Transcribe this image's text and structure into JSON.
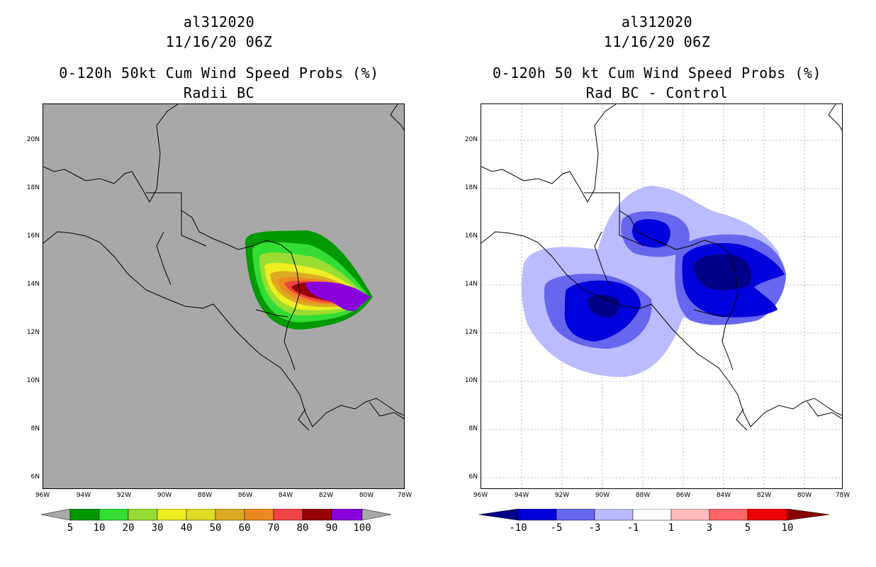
{
  "left": {
    "title_lines": [
      "al312020",
      "11/16/20 06Z",
      "0-120h 50kt Cum Wind Speed Probs (%)",
      "Radii BC"
    ],
    "map_background": "#a8a8a8",
    "colorbar": {
      "colors": [
        "#009900",
        "#33dd33",
        "#99dd33",
        "#eeee22",
        "#dddd22",
        "#ddaa22",
        "#ee8822",
        "#ee4444",
        "#990000",
        "#8800dd"
      ],
      "labels": [
        "5",
        "10",
        "20",
        "30",
        "40",
        "50",
        "60",
        "70",
        "80",
        "90",
        "100"
      ],
      "left_tri": "#a8a8a8",
      "right_tri": "#a8a8a8"
    }
  },
  "right": {
    "title_lines": [
      "al312020",
      "11/16/20 06Z",
      "0-120h 50 kt Cum Wind Speed Probs (%)",
      "Rad BC - Control"
    ],
    "map_background": "#ffffff",
    "colorbar": {
      "colors": [
        "#0000dd",
        "#6666ee",
        "#bbbbff",
        "#ffffff",
        "#ffbbbb",
        "#ff6666",
        "#ee0000"
      ],
      "labels": [
        "-10",
        "-5",
        "-3",
        "-1",
        "1",
        "3",
        "5",
        "10"
      ],
      "left_tri": "#000088",
      "right_tri": "#880000"
    }
  },
  "axes": {
    "lat_labels": [
      "20N",
      "18N",
      "16N",
      "14N",
      "12N",
      "10N",
      "8N",
      "6N"
    ],
    "lon_labels": [
      "96W",
      "94W",
      "92W",
      "90W",
      "88W",
      "86W",
      "84W",
      "82W",
      "80W",
      "78W"
    ]
  }
}
